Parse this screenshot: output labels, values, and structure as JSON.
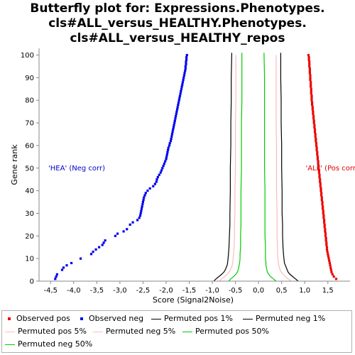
{
  "chart_data": {
    "type": "scatter",
    "title_lines": [
      "Butterfly plot for: Expressions.Phenotypes.",
      "cls#ALL_versus_HEALTHY.Phenotypes.",
      "cls#ALL_versus_HEALTHY_repos"
    ],
    "xlabel": "Score (Signal2Noise)",
    "ylabel": "Gene rank",
    "xlim": [
      -4.75,
      1.98
    ],
    "ylim": [
      0,
      103
    ],
    "x_ticks": [
      -4.5,
      -4.0,
      -3.5,
      -3.0,
      -2.5,
      -2.0,
      -1.5,
      -1.0,
      -0.5,
      0.0,
      0.5,
      1.0,
      1.5
    ],
    "x_tick_labels": [
      "-4,5",
      "-4,0",
      "-3,5",
      "-3,0",
      "-2,5",
      "-2,0",
      "-1,5",
      "-1,0",
      "-0,5",
      "0,0",
      "0,5",
      "1,0",
      "1,5"
    ],
    "y_ticks": [
      0,
      10,
      20,
      30,
      40,
      50,
      60,
      70,
      80,
      90,
      100
    ],
    "y_tick_labels": [
      "0",
      "10",
      "20",
      "30",
      "40",
      "50",
      "60",
      "70",
      "80",
      "90",
      "100"
    ],
    "grid": false,
    "legend_position": "bottom",
    "annotations": [
      {
        "text": "'HEA' (Neg corr)",
        "x": -4.55,
        "y": 50,
        "color": "#0000cc"
      },
      {
        "text": "'ALL' (Pos corr)",
        "x": 1.02,
        "y": 50,
        "color": "#dd0000"
      }
    ],
    "series": [
      {
        "name": "Observed pos",
        "kind": "points",
        "color": "#ee0000",
        "y": [
          1,
          2,
          3,
          4,
          5,
          6,
          7,
          8,
          9,
          10,
          11,
          12,
          13,
          14,
          15,
          16,
          17,
          18,
          19,
          20,
          21,
          22,
          23,
          24,
          25,
          26,
          27,
          28,
          29,
          30,
          31,
          32,
          33,
          34,
          35,
          36,
          37,
          38,
          39,
          40,
          41,
          42,
          43,
          44,
          45,
          46,
          47,
          48,
          49,
          50,
          51,
          52,
          53,
          54,
          55,
          56,
          57,
          58,
          59,
          60,
          61,
          62,
          63,
          64,
          65,
          66,
          67,
          68,
          69,
          70,
          71,
          72,
          73,
          74,
          75,
          76,
          77,
          78,
          79,
          80,
          81,
          82,
          83,
          84,
          85,
          86,
          87,
          88,
          89,
          90,
          91,
          92,
          93,
          94,
          95,
          96,
          97,
          98,
          99,
          100
        ],
        "x": [
          1.68,
          1.63,
          1.6,
          1.58,
          1.57,
          1.56,
          1.55,
          1.54,
          1.53,
          1.52,
          1.51,
          1.5,
          1.49,
          1.48,
          1.48,
          1.47,
          1.47,
          1.46,
          1.46,
          1.45,
          1.45,
          1.44,
          1.44,
          1.43,
          1.43,
          1.42,
          1.42,
          1.41,
          1.41,
          1.4,
          1.4,
          1.39,
          1.39,
          1.38,
          1.38,
          1.37,
          1.37,
          1.36,
          1.36,
          1.35,
          1.35,
          1.34,
          1.34,
          1.33,
          1.33,
          1.32,
          1.32,
          1.31,
          1.31,
          1.3,
          1.3,
          1.29,
          1.29,
          1.28,
          1.28,
          1.27,
          1.27,
          1.26,
          1.26,
          1.25,
          1.25,
          1.24,
          1.24,
          1.23,
          1.23,
          1.22,
          1.22,
          1.21,
          1.21,
          1.2,
          1.2,
          1.19,
          1.19,
          1.18,
          1.18,
          1.17,
          1.17,
          1.16,
          1.16,
          1.15,
          1.15,
          1.15,
          1.14,
          1.14,
          1.14,
          1.13,
          1.13,
          1.13,
          1.12,
          1.12,
          1.12,
          1.11,
          1.11,
          1.11,
          1.1,
          1.1,
          1.1,
          1.09,
          1.09,
          1.08
        ]
      },
      {
        "name": "Observed neg",
        "kind": "points",
        "color": "#0000ee",
        "y": [
          1,
          2,
          3,
          5,
          6,
          7,
          8,
          10,
          12,
          13,
          14,
          15,
          16,
          17,
          18,
          20,
          21,
          22,
          23,
          25,
          26,
          27,
          28,
          29,
          30,
          31,
          32,
          33,
          34,
          35,
          36,
          37,
          38,
          39,
          40,
          41,
          42,
          43,
          44,
          45,
          46,
          47,
          48,
          49,
          50,
          51,
          52,
          53,
          54,
          55,
          56,
          57,
          58,
          59,
          60,
          61,
          62,
          63,
          64,
          65,
          66,
          67,
          68,
          69,
          70,
          71,
          72,
          73,
          74,
          75,
          76,
          77,
          78,
          79,
          80,
          81,
          82,
          83,
          84,
          85,
          86,
          87,
          88,
          89,
          90,
          91,
          92,
          93,
          94,
          95,
          96,
          97,
          98,
          99,
          100
        ],
        "x": [
          -4.4,
          -4.38,
          -4.36,
          -4.25,
          -4.22,
          -4.15,
          -4.05,
          -3.85,
          -3.62,
          -3.58,
          -3.52,
          -3.45,
          -3.38,
          -3.35,
          -3.32,
          -3.1,
          -3.05,
          -2.92,
          -2.85,
          -2.78,
          -2.72,
          -2.62,
          -2.58,
          -2.56,
          -2.55,
          -2.54,
          -2.53,
          -2.52,
          -2.51,
          -2.5,
          -2.49,
          -2.48,
          -2.46,
          -2.44,
          -2.4,
          -2.35,
          -2.28,
          -2.24,
          -2.21,
          -2.2,
          -2.18,
          -2.15,
          -2.12,
          -2.1,
          -2.08,
          -2.06,
          -2.04,
          -2.02,
          -2.0,
          -1.99,
          -1.98,
          -1.97,
          -1.96,
          -1.95,
          -1.93,
          -1.92,
          -1.9,
          -1.89,
          -1.88,
          -1.87,
          -1.86,
          -1.85,
          -1.84,
          -1.83,
          -1.82,
          -1.81,
          -1.8,
          -1.79,
          -1.78,
          -1.77,
          -1.76,
          -1.75,
          -1.74,
          -1.73,
          -1.72,
          -1.71,
          -1.7,
          -1.69,
          -1.68,
          -1.67,
          -1.66,
          -1.65,
          -1.64,
          -1.63,
          -1.62,
          -1.61,
          -1.6,
          -1.59,
          -1.58,
          -1.58,
          -1.57,
          -1.57,
          -1.56,
          -1.56,
          -1.55
        ]
      },
      {
        "name": "Permuted pos 1%",
        "kind": "line",
        "color": "#000000",
        "x": [
          0.86,
          0.8,
          0.74,
          0.68,
          0.64,
          0.62,
          0.6,
          0.58,
          0.56,
          0.55,
          0.54,
          0.53,
          0.52,
          0.52,
          0.51,
          0.51,
          0.5,
          0.5,
          0.49,
          0.49,
          0.48,
          0.48,
          0.48
        ],
        "y": [
          0,
          1,
          2,
          3,
          4,
          5,
          6,
          7,
          8,
          10,
          12,
          15,
          20,
          25,
          30,
          40,
          50,
          60,
          70,
          80,
          90,
          100,
          101
        ]
      },
      {
        "name": "Permuted neg 1%",
        "kind": "line",
        "color": "#000000",
        "x": [
          -0.97,
          -0.92,
          -0.86,
          -0.8,
          -0.75,
          -0.72,
          -0.7,
          -0.68,
          -0.67,
          -0.66,
          -0.65,
          -0.64,
          -0.63,
          -0.62,
          -0.62,
          -0.61,
          -0.61,
          -0.6,
          -0.6,
          -0.59,
          -0.59,
          -0.58,
          -0.58
        ],
        "y": [
          0,
          1,
          2,
          3,
          4,
          5,
          6,
          7,
          8,
          10,
          12,
          15,
          20,
          25,
          30,
          40,
          50,
          60,
          70,
          80,
          90,
          100,
          101
        ]
      },
      {
        "name": "Permuted pos 5%",
        "kind": "line",
        "color": "#ffbbbb",
        "x": [
          0.7,
          0.64,
          0.58,
          0.53,
          0.49,
          0.47,
          0.45,
          0.44,
          0.43,
          0.42,
          0.41,
          0.41,
          0.4,
          0.4,
          0.4,
          0.39,
          0.39,
          0.39,
          0.38,
          0.38,
          0.38,
          0.38
        ],
        "y": [
          0,
          1,
          2,
          3,
          4,
          5,
          6,
          7,
          8,
          10,
          12,
          15,
          20,
          25,
          30,
          40,
          50,
          60,
          70,
          80,
          90,
          100
        ]
      },
      {
        "name": "Permuted neg 5%",
        "kind": "line",
        "color": "#ffbbbb",
        "x": [
          -0.85,
          -0.8,
          -0.74,
          -0.68,
          -0.64,
          -0.61,
          -0.59,
          -0.57,
          -0.56,
          -0.55,
          -0.54,
          -0.53,
          -0.52,
          -0.52,
          -0.51,
          -0.51,
          -0.5,
          -0.5,
          -0.5,
          -0.49,
          -0.49,
          -0.49
        ],
        "y": [
          0,
          1,
          2,
          3,
          4,
          5,
          6,
          7,
          8,
          10,
          12,
          15,
          20,
          25,
          30,
          40,
          50,
          60,
          70,
          80,
          90,
          100
        ]
      },
      {
        "name": "Permuted pos 50%",
        "kind": "line",
        "color": "#00cc00",
        "x": [
          0.38,
          0.32,
          0.26,
          0.22,
          0.19,
          0.18,
          0.17,
          0.16,
          0.16,
          0.15,
          0.15,
          0.15,
          0.14,
          0.14,
          0.14,
          0.14,
          0.13,
          0.13,
          0.13,
          0.13,
          0.13,
          0.12,
          0.12
        ],
        "y": [
          0,
          1,
          2,
          3,
          4,
          5,
          6,
          7,
          8,
          10,
          12,
          15,
          20,
          25,
          30,
          40,
          50,
          60,
          70,
          80,
          90,
          100,
          101
        ]
      },
      {
        "name": "Permuted neg 50%",
        "kind": "line",
        "color": "#00cc00",
        "x": [
          -0.65,
          -0.6,
          -0.54,
          -0.49,
          -0.46,
          -0.44,
          -0.43,
          -0.42,
          -0.41,
          -0.4,
          -0.4,
          -0.39,
          -0.39,
          -0.38,
          -0.38,
          -0.38,
          -0.37,
          -0.37,
          -0.37,
          -0.36,
          -0.36,
          -0.36,
          -0.36
        ],
        "y": [
          0,
          1,
          2,
          3,
          4,
          5,
          6,
          7,
          8,
          10,
          12,
          15,
          20,
          25,
          30,
          40,
          50,
          60,
          70,
          80,
          90,
          100,
          101
        ]
      }
    ]
  },
  "legend": {
    "items": [
      {
        "label": "Observed pos",
        "color": "#ee0000",
        "marker": "square"
      },
      {
        "label": "Observed neg",
        "color": "#0000ee",
        "marker": "square"
      },
      {
        "label": "Permuted pos 1%",
        "color": "#000000",
        "marker": "line"
      },
      {
        "label": "Permuted neg 1%",
        "color": "#000000",
        "marker": "line"
      },
      {
        "label": "Permuted pos 5%",
        "color": "#ffbbbb",
        "marker": "line"
      },
      {
        "label": "Permuted neg 5%",
        "color": "#ffbbbb",
        "marker": "line"
      },
      {
        "label": "Permuted pos 50%",
        "color": "#00cc00",
        "marker": "line"
      },
      {
        "label": "Permuted neg 50%",
        "color": "#00cc00",
        "marker": "line"
      }
    ]
  }
}
